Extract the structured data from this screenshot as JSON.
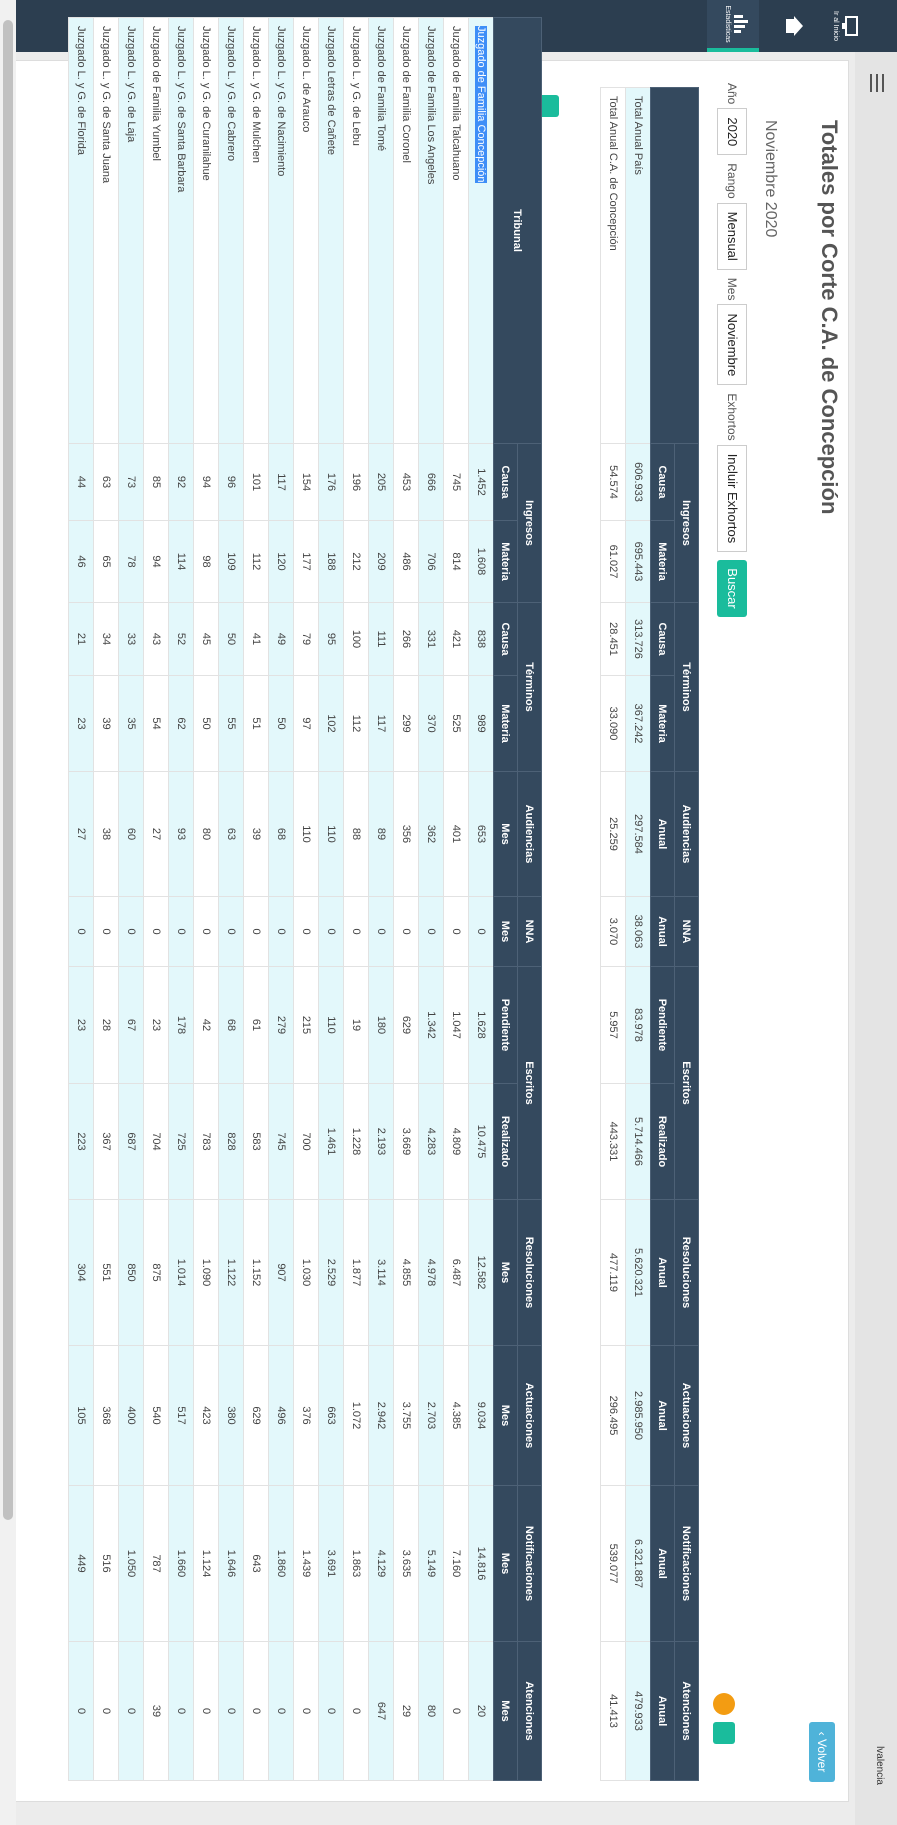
{
  "nav": [
    {
      "label": "Ir al Inicio"
    },
    {
      "label": ""
    },
    {
      "label": "Estadisticas"
    }
  ],
  "user": "lvalencia",
  "header": {
    "title": "Totales por Corte C.A. de Concepción",
    "subtitle": "Noviembre 2020",
    "back": "Volver"
  },
  "filters": [
    {
      "label": "Año",
      "value": "2020"
    },
    {
      "label": "Rango",
      "value": "Mensual"
    },
    {
      "label": "Mes",
      "value": "Noviembre"
    },
    {
      "label": "Exhortos",
      "value": "Incluir Exhortos"
    }
  ],
  "search": "Buscar",
  "summary": {
    "groups": [
      {
        "name": "Ingresos",
        "span": 2
      },
      {
        "name": "Términos",
        "span": 2
      },
      {
        "name": "Audiencias",
        "span": 1
      },
      {
        "name": "NNA",
        "span": 1
      },
      {
        "name": "Escritos",
        "span": 2
      },
      {
        "name": "Resoluciones",
        "span": 1
      },
      {
        "name": "Actuaciones",
        "span": 1
      },
      {
        "name": "Notificaciones",
        "span": 1
      },
      {
        "name": "Atenciones",
        "span": 1
      }
    ],
    "subheaders": [
      "Causa",
      "Materia",
      "Causa",
      "Materia",
      "Anual",
      "Anual",
      "Pendiente",
      "Realizado",
      "Anual",
      "Anual",
      "Anual",
      "Anual"
    ],
    "rows": [
      [
        "Total Anual País",
        "606.933",
        "695.443",
        "313.726",
        "367.242",
        "297.584",
        "38.063",
        "83.978",
        "5.714.466",
        "5.620.321",
        "2.985.950",
        "6.321.887",
        "479.933"
      ],
      [
        "Total Anual C.A. de Concepción",
        "54.574",
        "61.027",
        "28.451",
        "33.090",
        "25.259",
        "3.070",
        "5.957",
        "443.331",
        "477.119",
        "296.495",
        "539.077",
        "41.413"
      ]
    ]
  },
  "table": {
    "first": "Tribunal",
    "groups": [
      {
        "name": "Ingresos",
        "span": 2
      },
      {
        "name": "Términos",
        "span": 2
      },
      {
        "name": "Audiencias",
        "span": 1
      },
      {
        "name": "NNA",
        "span": 1
      },
      {
        "name": "Escritos",
        "span": 2
      },
      {
        "name": "Resoluciones",
        "span": 1
      },
      {
        "name": "Actuaciones",
        "span": 1
      },
      {
        "name": "Notificaciones",
        "span": 1
      },
      {
        "name": "Atenciones",
        "span": 1
      }
    ],
    "subheaders": [
      "Causa",
      "Materia",
      "Causa",
      "Materia",
      "Mes",
      "Mes",
      "Pendiente",
      "Realizado",
      "Mes",
      "Mes",
      "Mes",
      "Mes"
    ],
    "rows": [
      [
        "Juzgado de Familia Concepción",
        "1.452",
        "1.608",
        "838",
        "989",
        "653",
        "0",
        "1.628",
        "10.475",
        "12.582",
        "9.034",
        "14.816",
        "20"
      ],
      [
        "Juzgado de Familia Talcahuano",
        "745",
        "814",
        "421",
        "525",
        "401",
        "0",
        "1.047",
        "4.809",
        "6.487",
        "4.385",
        "7.160",
        "0"
      ],
      [
        "Juzgado de Familia Los Angeles",
        "666",
        "706",
        "331",
        "370",
        "362",
        "0",
        "1.342",
        "4.283",
        "4.978",
        "2.703",
        "5.149",
        "80"
      ],
      [
        "Juzgado de Familia Coronel",
        "453",
        "486",
        "266",
        "299",
        "356",
        "0",
        "629",
        "3.669",
        "4.855",
        "3.755",
        "3.635",
        "29"
      ],
      [
        "Juzgado de Familia Tomé",
        "205",
        "209",
        "111",
        "117",
        "89",
        "0",
        "180",
        "2.193",
        "3.114",
        "2.942",
        "4.129",
        "647"
      ],
      [
        "Juzgado L. y G. de Lebu",
        "196",
        "212",
        "100",
        "112",
        "88",
        "0",
        "19",
        "1.228",
        "1.877",
        "1.072",
        "1.863",
        "0"
      ],
      [
        "Juzgado Letras de Cañete",
        "176",
        "188",
        "95",
        "102",
        "110",
        "0",
        "110",
        "1.461",
        "2.529",
        "663",
        "3.691",
        "0"
      ],
      [
        "Juzgado L. de Arauco",
        "154",
        "177",
        "79",
        "97",
        "110",
        "0",
        "215",
        "700",
        "1.030",
        "376",
        "1.439",
        "0"
      ],
      [
        "Juzgado L. y G. de Nacimiento",
        "117",
        "120",
        "49",
        "50",
        "68",
        "0",
        "279",
        "745",
        "907",
        "496",
        "1.860",
        "0"
      ],
      [
        "Juzgado L. y G. de Mulchen",
        "101",
        "112",
        "41",
        "51",
        "39",
        "0",
        "61",
        "583",
        "1.152",
        "629",
        "643",
        "0"
      ],
      [
        "Juzgado L. y G. de Cabrero",
        "96",
        "109",
        "50",
        "55",
        "63",
        "0",
        "68",
        "828",
        "1.122",
        "380",
        "1.646",
        "0"
      ],
      [
        "Juzgado L. y G. de Curanilahue",
        "94",
        "98",
        "45",
        "50",
        "80",
        "0",
        "42",
        "783",
        "1.090",
        "423",
        "1.124",
        "0"
      ],
      [
        "Juzgado L. y G. de Santa Barbara",
        "92",
        "114",
        "52",
        "62",
        "93",
        "0",
        "178",
        "725",
        "1.014",
        "517",
        "1.660",
        "0"
      ],
      [
        "Juzgado de Familia Yumbel",
        "85",
        "94",
        "43",
        "54",
        "27",
        "0",
        "23",
        "704",
        "875",
        "540",
        "787",
        "39"
      ],
      [
        "Juzgado L. y G. de Laja",
        "73",
        "78",
        "33",
        "35",
        "60",
        "0",
        "67",
        "687",
        "850",
        "400",
        "1.050",
        "0"
      ],
      [
        "Juzgado L. y G. de Santa Juana",
        "63",
        "65",
        "34",
        "39",
        "38",
        "0",
        "28",
        "367",
        "551",
        "368",
        "516",
        "0"
      ],
      [
        "Juzgado L. y G. de Florida",
        "44",
        "46",
        "21",
        "23",
        "27",
        "0",
        "23",
        "223",
        "304",
        "105",
        "449",
        "0"
      ]
    ]
  }
}
